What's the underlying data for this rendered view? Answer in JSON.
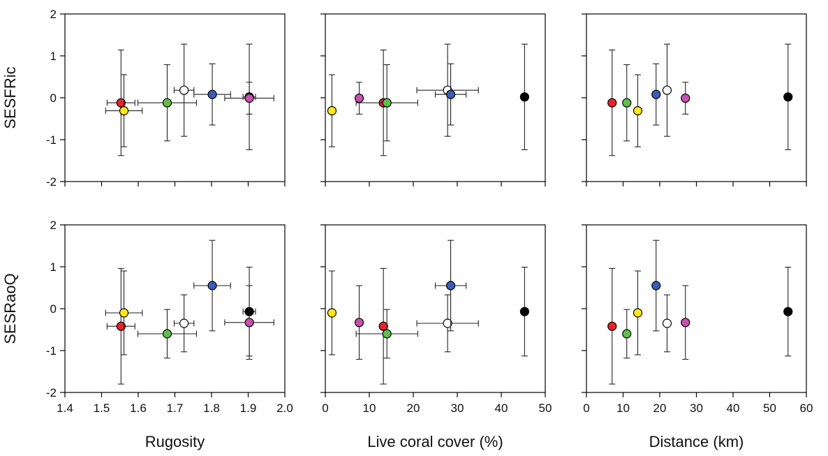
{
  "rows": [
    {
      "ylabel": "SESFRic",
      "yticks": [
        "2",
        "1",
        "0",
        "-1",
        "-2"
      ]
    },
    {
      "ylabel": "SESRaoQ",
      "yticks": [
        "2",
        "1",
        "0",
        "-1",
        "-2"
      ]
    }
  ],
  "columns": [
    {
      "xlabel": "Rugosity",
      "xticks": [
        "1.4",
        "1.5",
        "1.6",
        "1.7",
        "1.8",
        "1.9",
        "2.0"
      ]
    },
    {
      "xlabel": "Live coral cover (%)",
      "xticks": [
        "0",
        "10",
        "20",
        "30",
        "40",
        "50"
      ]
    },
    {
      "xlabel": "Distance (km)",
      "xticks": [
        "0",
        "10",
        "20",
        "30",
        "40",
        "50",
        "60"
      ]
    }
  ],
  "chart_data": {
    "type": "scatter",
    "layout": "2x3 panel grid with error bars",
    "grid": false,
    "legend": "none",
    "rows": [
      {
        "ylabel": "SESFRic",
        "ylim": [
          -2,
          2
        ]
      },
      {
        "ylabel": "SESRaoQ",
        "ylim": [
          -2,
          2
        ]
      }
    ],
    "columns": [
      {
        "xlabel": "Rugosity",
        "xlim": [
          1.4,
          2.0
        ]
      },
      {
        "xlabel": "Live coral cover (%)",
        "xlim": [
          0,
          50
        ]
      },
      {
        "xlabel": "Distance (km)",
        "xlim": [
          0,
          60
        ]
      }
    ],
    "sites": [
      {
        "color": "#e8232a",
        "rugosity": {
          "x": 1.553,
          "xerr": 0.038
        },
        "coral": {
          "x": 13.2,
          "xerr": 0
        },
        "distance": 7,
        "sesfric": {
          "y": -0.12,
          "yerr_upper": 1.26,
          "yerr_lower": 1.26
        },
        "sesraoq": {
          "y": -0.42,
          "yerr_upper": 1.38,
          "yerr_lower": 1.38
        }
      },
      {
        "color": "#ffe81a",
        "rugosity": {
          "x": 1.561,
          "xerr": 0.05
        },
        "coral": {
          "x": 1.5,
          "xerr": 0
        },
        "distance": 14,
        "sesfric": {
          "y": -0.31,
          "yerr_upper": 0.86,
          "yerr_lower": 0.86
        },
        "sesraoq": {
          "y": -0.1,
          "yerr_upper": 1.0,
          "yerr_lower": 1.0
        }
      },
      {
        "color": "#5fbf4a",
        "rugosity": {
          "x": 1.679,
          "xerr": 0.08
        },
        "coral": {
          "x": 14.0,
          "xerr": 7.0
        },
        "distance": 11,
        "sesfric": {
          "y": -0.12,
          "yerr_upper": 0.91,
          "yerr_lower": 0.91
        },
        "sesraoq": {
          "y": -0.6,
          "yerr_upper": 0.58,
          "yerr_lower": 0.58
        }
      },
      {
        "color": "#ffffff",
        "rugosity": {
          "x": 1.725,
          "xerr": 0.027
        },
        "coral": {
          "x": 27.8,
          "xerr": 7.0
        },
        "distance": 22,
        "sesfric": {
          "y": 0.18,
          "yerr_upper": 1.1,
          "yerr_lower": 1.1
        },
        "sesraoq": {
          "y": -0.35,
          "yerr_upper": 0.68,
          "yerr_lower": 0.68
        }
      },
      {
        "color": "#3a5db8",
        "rugosity": {
          "x": 1.802,
          "xerr": 0.05
        },
        "coral": {
          "x": 28.5,
          "xerr": 3.5
        },
        "distance": 19,
        "sesfric": {
          "y": 0.08,
          "yerr_upper": 0.73,
          "yerr_lower": 0.73
        },
        "sesraoq": {
          "y": 0.55,
          "yerr_upper": 1.08,
          "yerr_lower": 1.08
        }
      },
      {
        "color": "#000000",
        "rugosity": {
          "x": 1.903,
          "xerr": 0.017
        },
        "coral": {
          "x": 45.3,
          "xerr": 0
        },
        "distance": 55,
        "sesfric": {
          "y": 0.02,
          "yerr_upper": 1.26,
          "yerr_lower": 1.26
        },
        "sesraoq": {
          "y": -0.07,
          "yerr_upper": 1.06,
          "yerr_lower": 1.06
        }
      },
      {
        "color": "#c94fb0",
        "rugosity": {
          "x": 1.903,
          "xerr": 0.067
        },
        "coral": {
          "x": 7.7,
          "xerr": 0
        },
        "distance": 27,
        "sesfric": {
          "y": -0.01,
          "yerr_upper": 0.38,
          "yerr_lower": 0.38
        },
        "sesraoq": {
          "y": -0.33,
          "yerr_upper": 0.88,
          "yerr_lower": 0.88
        }
      }
    ]
  }
}
